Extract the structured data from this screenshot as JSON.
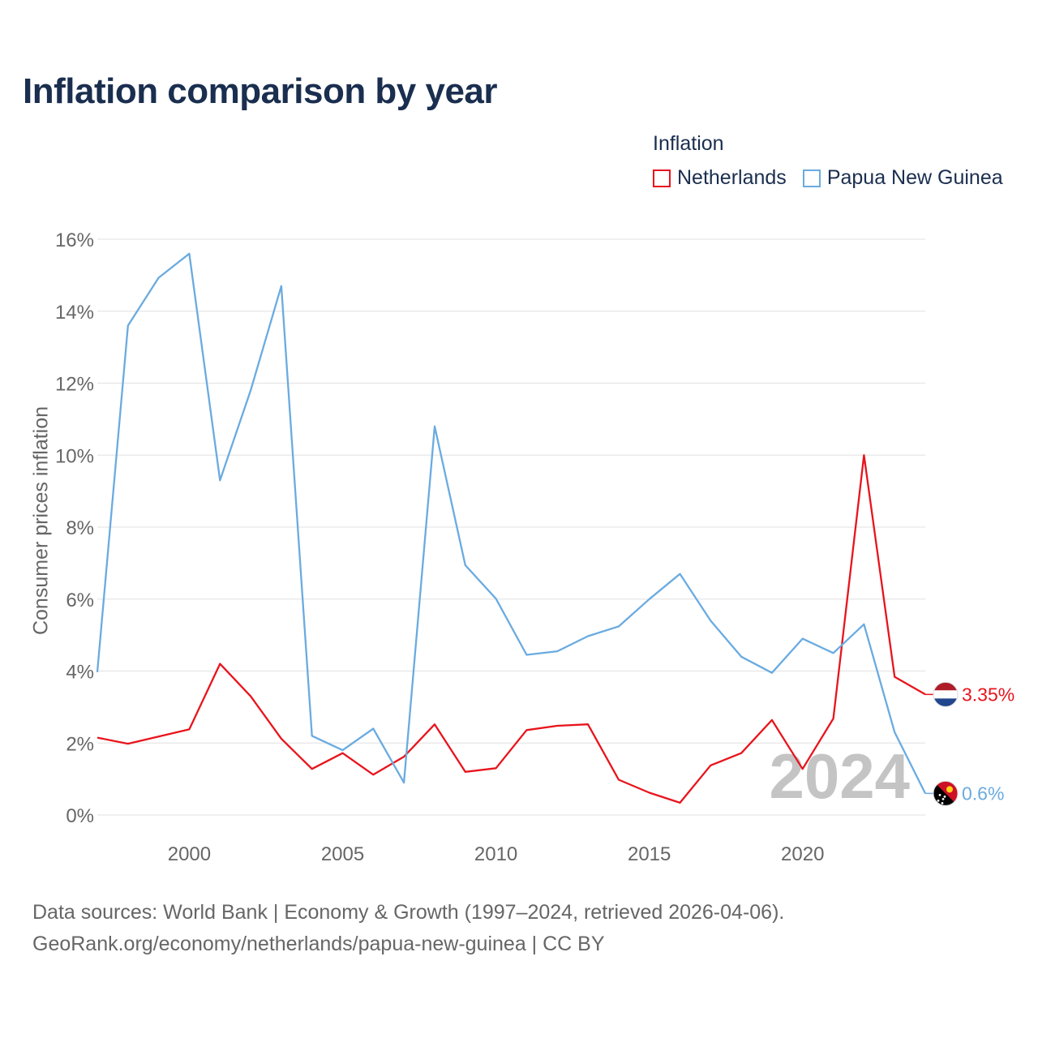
{
  "chart_data": {
    "type": "line",
    "title": "Inflation comparison by year",
    "legend_title": "Inflation",
    "ylabel": "Consumer prices inflation",
    "xlabel": "",
    "year_watermark": "2024",
    "x": [
      1997,
      1998,
      1999,
      2000,
      2001,
      2002,
      2003,
      2004,
      2005,
      2006,
      2007,
      2008,
      2009,
      2010,
      2011,
      2012,
      2013,
      2014,
      2015,
      2016,
      2017,
      2018,
      2019,
      2020,
      2021,
      2022,
      2023,
      2024
    ],
    "xlim": [
      1997,
      2024
    ],
    "ylim": [
      0,
      16
    ],
    "x_ticks": [
      2000,
      2005,
      2010,
      2015,
      2020
    ],
    "y_ticks": [
      0,
      2,
      4,
      6,
      8,
      10,
      12,
      14,
      16
    ],
    "y_tick_labels": [
      "0%",
      "2%",
      "4%",
      "6%",
      "8%",
      "10%",
      "12%",
      "14%",
      "16%"
    ],
    "grid": true,
    "legend_position": "top-right",
    "series": [
      {
        "name": "Netherlands",
        "color": "#e8141c",
        "end_label": "3.35%",
        "flag": "netherlands-flag",
        "values": [
          2.15,
          1.98,
          2.18,
          2.38,
          4.2,
          3.3,
          2.12,
          1.28,
          1.72,
          1.12,
          1.62,
          2.52,
          1.2,
          1.3,
          2.36,
          2.48,
          2.52,
          0.98,
          0.62,
          0.34,
          1.38,
          1.72,
          2.64,
          1.28,
          2.68,
          10.0,
          3.84,
          3.35
        ]
      },
      {
        "name": "Papua New Guinea",
        "color": "#6aabe0",
        "end_label": "0.6%",
        "flag": "papua-new-guinea-flag",
        "values": [
          3.97,
          13.6,
          14.93,
          15.6,
          9.3,
          11.8,
          14.7,
          2.2,
          1.8,
          2.4,
          0.9,
          10.8,
          6.94,
          6.01,
          4.45,
          4.55,
          4.97,
          5.24,
          6.0,
          6.7,
          5.4,
          4.4,
          3.95,
          4.9,
          4.5,
          5.3,
          2.3,
          0.6
        ]
      }
    ]
  },
  "footer": {
    "line1": "Data sources: World Bank | Economy & Growth (1997–2024, retrieved 2026-04-06).",
    "line2": "GeoRank.org/economy/netherlands/papua-new-guinea | CC BY"
  }
}
